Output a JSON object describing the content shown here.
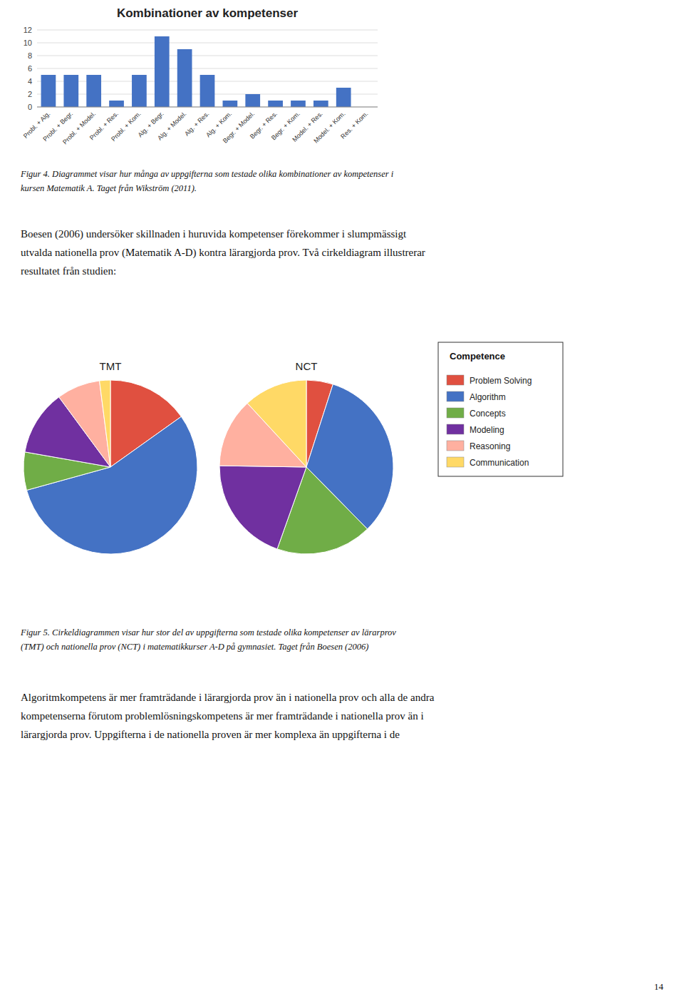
{
  "chart_data": [
    {
      "type": "bar",
      "title": "Kombinationer av kompetenser",
      "categories": [
        "Probl. + Alg.",
        "Probl. + Begr.",
        "Probl. + Model.",
        "Probl. + Res.",
        "Probl. + Kom.",
        "Alg. + Begr.",
        "Alg. + Model.",
        "Alg. + Res.",
        "Alg. + Kom.",
        "Begr. + Model.",
        "Begr. + Res.",
        "Begr. + Kom.",
        "Model. + Res.",
        "Model. + Kom.",
        "Res. + Kom."
      ],
      "values": [
        5,
        5,
        5,
        1,
        5,
        11,
        9,
        5,
        1,
        2,
        1,
        1,
        1,
        3,
        0
      ],
      "color": "#4472C4",
      "ylim": [
        0,
        12
      ],
      "yticks": [
        0,
        2,
        4,
        6,
        8,
        10,
        12
      ],
      "grid": true
    },
    {
      "type": "pie",
      "title": "TMT",
      "categories": [
        "Problem Solving",
        "Algorithm",
        "Concepts",
        "Modeling",
        "Reasoning",
        "Communication"
      ],
      "values": [
        15,
        55,
        7,
        12,
        8,
        2
      ],
      "colors": [
        "#E05040",
        "#4472C4",
        "#70AD47",
        "#7030A0",
        "#FFB0A0",
        "#FFD966"
      ]
    },
    {
      "type": "pie",
      "title": "NCT",
      "categories": [
        "Problem Solving",
        "Algorithm",
        "Concepts",
        "Modeling",
        "Reasoning",
        "Communication"
      ],
      "values": [
        5,
        33,
        18,
        20,
        13,
        12
      ],
      "colors": [
        "#E05040",
        "#4472C4",
        "#70AD47",
        "#7030A0",
        "#FFB0A0",
        "#FFD966"
      ],
      "legend": "right"
    }
  ],
  "legend_title": "Competence",
  "captions": [
    [
      "Figur 4. Diagrammet visar hur många av uppgifterna som testade olika kombinationer av kompetenser i",
      "kursen Matematik A. Taget från Wikström (2011)."
    ],
    [
      "Figur 5. Cirkeldiagrammen visar hur stor del av uppgifterna som testade olika kompetenser av lärarprov",
      "(TMT) och nationella prov (NCT) i matematikkurser A-D på gymnasiet. Taget från Boesen (2006)"
    ]
  ],
  "body_text": [
    [
      "Boesen (2006) undersöker skillnaden i huruvida kompetenser förekommer i slumpmässigt",
      "utvalda nationella prov (Matematik A-D) kontra lärargjorda prov. Två cirkeldiagram illustrerar",
      "resultatet från studien:"
    ],
    [
      "Algoritmkompetens är mer framträdande i lärargjorda prov än i nationella prov och alla de andra",
      "kompetenserna förutom problemlösningskompetens är mer framträdande i nationella prov än i",
      "lärargjorda prov. Uppgifterna i de nationella proven är mer komplexa än uppgifterna i de"
    ]
  ],
  "page_number": "14"
}
